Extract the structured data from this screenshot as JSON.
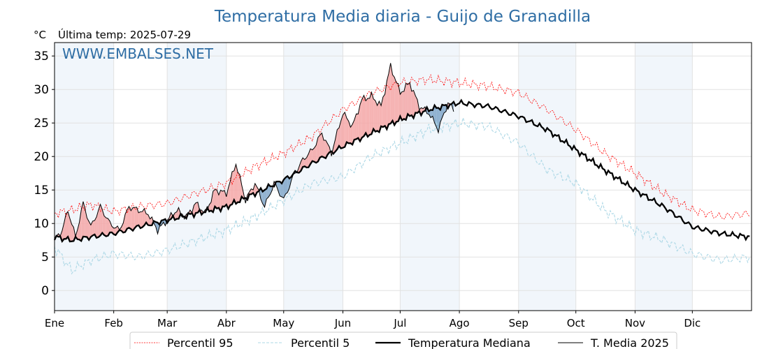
{
  "chart_data": {
    "type": "line",
    "title": "Temperatura Media diaria - Guijo de Granadilla",
    "unit_label": "°C",
    "last_temp_label": "Última temp: 2025-07-29",
    "watermark": "WWW.EMBALSES.NET",
    "ylim": [
      -3,
      37
    ],
    "yticks": [
      0,
      5,
      10,
      15,
      20,
      25,
      30,
      35
    ],
    "xlim": [
      1,
      366
    ],
    "months": [
      {
        "label": "Ene",
        "day": 1
      },
      {
        "label": "Feb",
        "day": 32
      },
      {
        "label": "Mar",
        "day": 60
      },
      {
        "label": "Abr",
        "day": 91
      },
      {
        "label": "May",
        "day": 121
      },
      {
        "label": "Jun",
        "day": 152
      },
      {
        "label": "Jul",
        "day": 182
      },
      {
        "label": "Ago",
        "day": 213
      },
      {
        "label": "Sep",
        "day": 244
      },
      {
        "label": "Oct",
        "day": 274
      },
      {
        "label": "Nov",
        "day": 305
      },
      {
        "label": "Dic",
        "day": 335
      }
    ],
    "grid": true,
    "legend_position": "bottom",
    "series": [
      {
        "name": "Percentil 95",
        "color": "#ff0000",
        "style": "dotted",
        "day": [
          1,
          10,
          20,
          32,
          45,
          60,
          75,
          91,
          106,
          121,
          136,
          152,
          167,
          182,
          197,
          213,
          228,
          244,
          259,
          274,
          289,
          305,
          320,
          335,
          350,
          365
        ],
        "value": [
          11.5,
          12.0,
          12.8,
          11.8,
          12.5,
          13.0,
          14.5,
          16.0,
          18.5,
          20.5,
          23.0,
          27.0,
          29.5,
          31.0,
          31.5,
          31.0,
          30.5,
          29.5,
          27.0,
          24.0,
          20.5,
          17.5,
          14.5,
          12.0,
          11.0,
          11.5
        ]
      },
      {
        "name": "Percentil 5",
        "color": "#add8e6",
        "style": "dashed",
        "day": [
          1,
          10,
          20,
          32,
          45,
          60,
          75,
          91,
          106,
          121,
          136,
          152,
          167,
          182,
          197,
          213,
          228,
          244,
          259,
          274,
          289,
          305,
          320,
          335,
          350,
          365
        ],
        "value": [
          6.5,
          3.0,
          4.5,
          5.5,
          5.0,
          6.0,
          7.5,
          9.0,
          11.0,
          13.5,
          16.0,
          17.0,
          20.0,
          22.0,
          24.0,
          25.0,
          24.5,
          22.0,
          18.0,
          16.0,
          12.0,
          9.0,
          7.5,
          5.5,
          4.5,
          5.0
        ]
      },
      {
        "name": "Temperatura Mediana",
        "color": "#000000",
        "style": "solid-thick",
        "day": [
          1,
          10,
          20,
          32,
          45,
          60,
          75,
          91,
          106,
          121,
          136,
          152,
          167,
          182,
          197,
          213,
          228,
          244,
          259,
          274,
          289,
          305,
          320,
          335,
          350,
          365
        ],
        "value": [
          8.0,
          7.5,
          8.0,
          8.5,
          9.5,
          10.5,
          11.5,
          12.5,
          14.5,
          16.5,
          19.0,
          21.5,
          23.5,
          25.5,
          27.0,
          28.0,
          27.5,
          26.0,
          24.0,
          21.0,
          18.0,
          15.0,
          12.5,
          9.5,
          8.5,
          8.0
        ]
      },
      {
        "name": "T. Media 2025",
        "color": "#000000",
        "style": "solid-thin",
        "day": [
          1,
          5,
          8,
          12,
          16,
          20,
          25,
          30,
          35,
          40,
          45,
          50,
          55,
          60,
          65,
          70,
          75,
          80,
          85,
          91,
          96,
          101,
          106,
          111,
          116,
          121,
          126,
          131,
          136,
          141,
          146,
          152,
          157,
          162,
          167,
          172,
          177,
          182,
          187,
          192,
          197,
          202,
          207,
          210
        ],
        "value": [
          7.5,
          9.0,
          12.0,
          8.0,
          13.0,
          9.5,
          12.5,
          10.0,
          9.0,
          12.5,
          12.0,
          11.5,
          9.0,
          10.5,
          12.0,
          11.0,
          13.0,
          11.5,
          15.0,
          14.5,
          19.0,
          13.5,
          16.0,
          12.5,
          16.0,
          13.5,
          17.0,
          19.5,
          21.0,
          23.5,
          20.5,
          26.5,
          24.5,
          28.5,
          29.0,
          27.5,
          33.5,
          29.5,
          31.0,
          27.5,
          26.5,
          24.0,
          28.0,
          27.0
        ]
      }
    ]
  }
}
